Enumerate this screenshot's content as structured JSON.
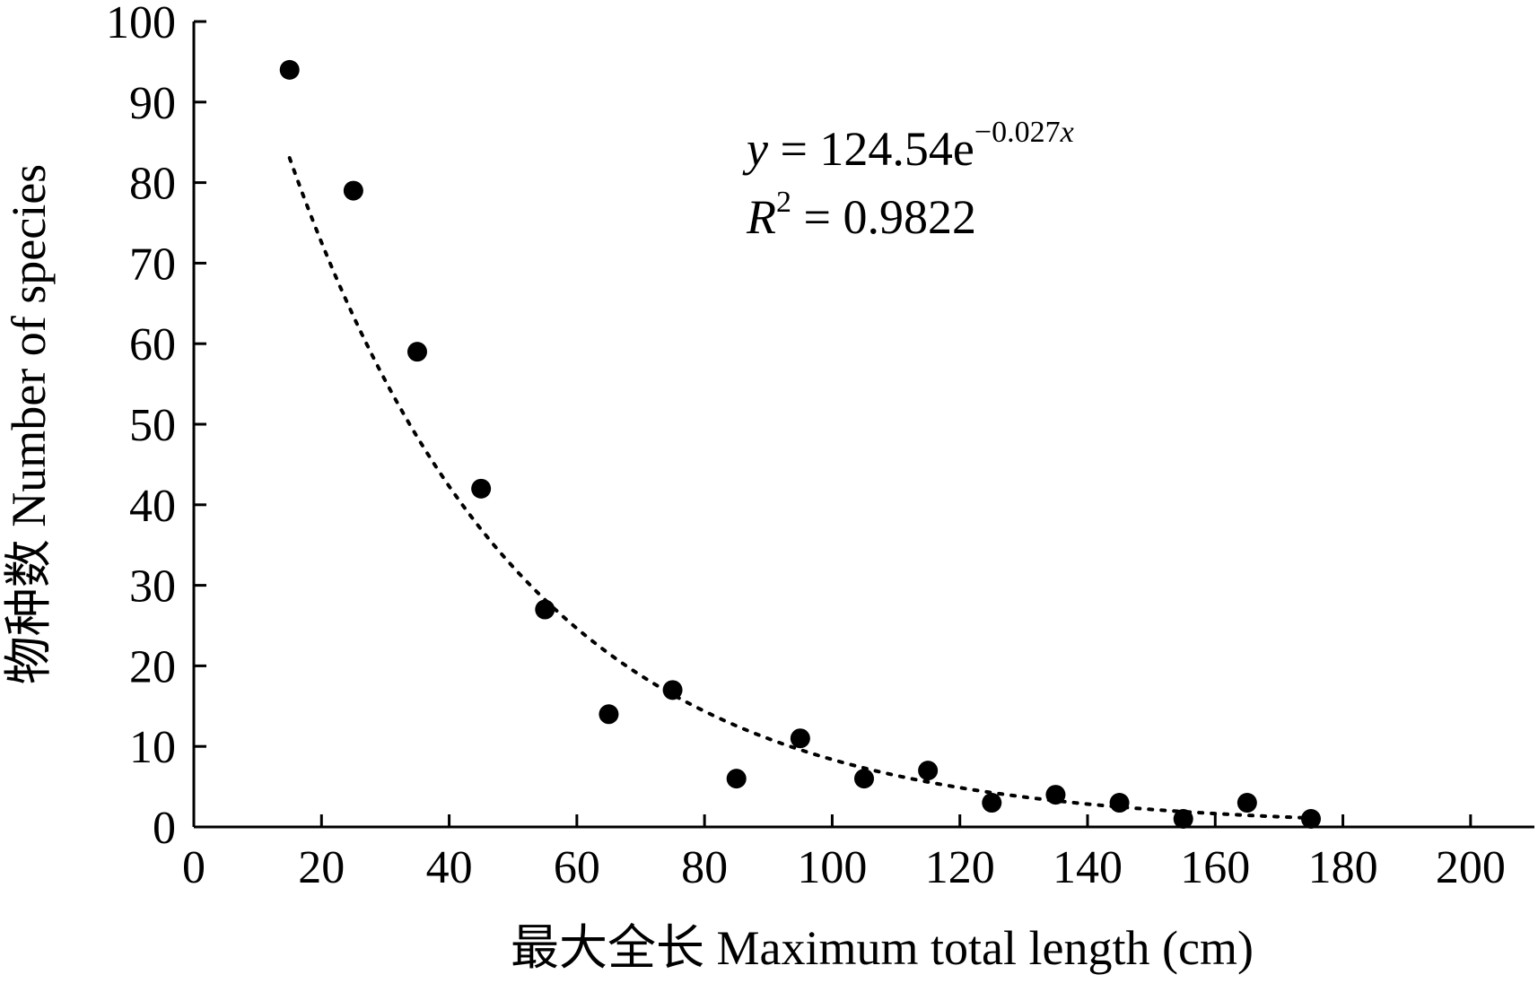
{
  "chart_data": {
    "type": "scatter",
    "xlabel": "最大全长 Maximum total length (cm)",
    "ylabel": "物种数 Number of species",
    "xlim": [
      0,
      210
    ],
    "ylim": [
      0,
      100
    ],
    "x_ticks": [
      0,
      20,
      40,
      60,
      80,
      100,
      120,
      140,
      160,
      180,
      200
    ],
    "y_ticks": [
      0,
      10,
      20,
      30,
      40,
      50,
      60,
      70,
      80,
      90,
      100
    ],
    "grid": false,
    "series": [
      {
        "x": [
          15,
          25,
          35,
          45,
          55,
          65,
          75,
          85,
          95,
          105,
          115,
          125,
          135,
          145,
          155,
          165,
          175
        ],
        "y": [
          94,
          79,
          59,
          42,
          27,
          14,
          17,
          6,
          11,
          6,
          7,
          3,
          4,
          3,
          1,
          3,
          1
        ]
      }
    ],
    "trendline": {
      "type": "exponential",
      "a": 124.54,
      "b": -0.027,
      "x_range": [
        15,
        175
      ],
      "equation": {
        "y_var": "y",
        "eq_main": " = 124.54e",
        "exponent": "−0.027",
        "exponent_var": "x",
        "r_var": "R",
        "r_sup": "2",
        "r_rest": " = 0.9822"
      }
    }
  }
}
